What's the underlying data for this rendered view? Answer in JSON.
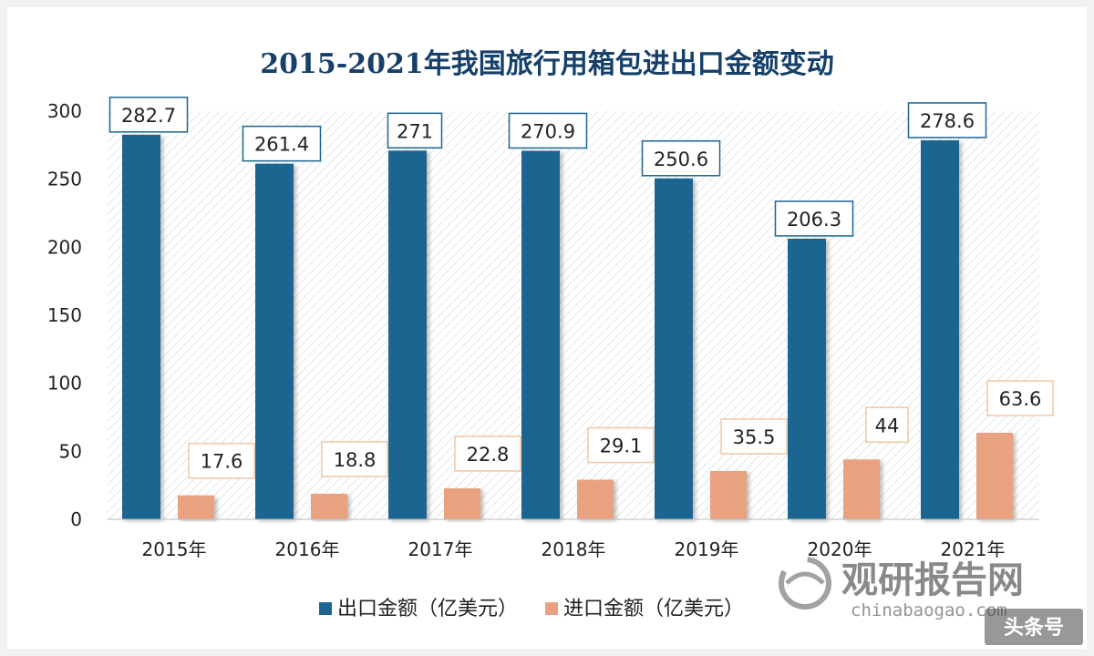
{
  "chart_data": {
    "type": "bar",
    "title": "2015-2021年我国旅行用箱包进出口金额变动",
    "categories": [
      "2015年",
      "2016年",
      "2017年",
      "2018年",
      "2019年",
      "2020年",
      "2021年"
    ],
    "series": [
      {
        "name": "出口金额（亿美元）",
        "values": [
          282.7,
          261.4,
          271,
          270.9,
          250.6,
          206.3,
          278.6
        ],
        "labels": [
          "282.7",
          "261.4",
          "271",
          "270.9",
          "250.6",
          "206.3",
          "278.6"
        ],
        "color": "#1c6591",
        "label_border": "#1c6591"
      },
      {
        "name": "进口金额（亿美元）",
        "values": [
          17.6,
          18.8,
          22.8,
          29.1,
          35.5,
          44,
          63.6
        ],
        "labels": [
          "17.6",
          "18.8",
          "22.8",
          "29.1",
          "35.5",
          "44",
          "63.6"
        ],
        "color": "#e9a27f",
        "label_border": "#f0c7a5"
      }
    ],
    "y_ticks": [
      "0",
      "50",
      "100",
      "150",
      "200",
      "250",
      "300"
    ],
    "ylim": [
      0,
      300
    ],
    "grid": false,
    "legend_position": "bottom-left",
    "xlabel": "",
    "ylabel": ""
  },
  "watermark": {
    "brand": "观研报告网",
    "url": "chinabaogao.com",
    "corner": "头条号"
  },
  "colors": {
    "plot_hatch": "#c8d3dc",
    "title": "#16406a"
  }
}
